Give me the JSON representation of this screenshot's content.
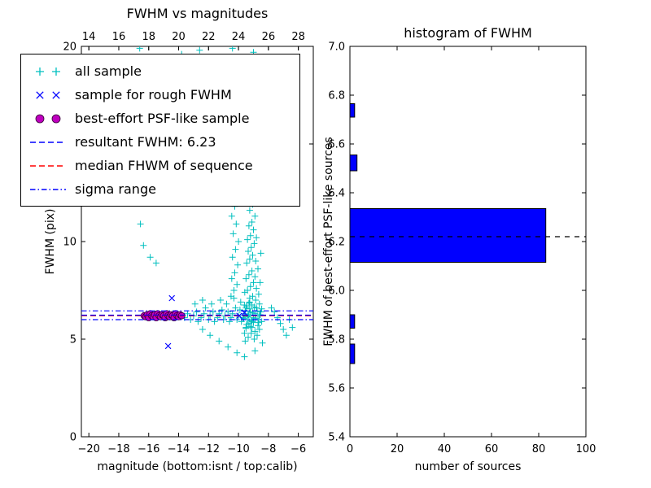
{
  "colors": {
    "cyan": "#00bfbf",
    "blue": "#0000ff",
    "magenta": "#bf00bf",
    "magenta_edge": "#330033",
    "red": "#ff0000",
    "black": "#000000",
    "hist_fill": "#0000ff",
    "background": "#ffffff"
  },
  "legend": {
    "items": [
      {
        "label": "all sample",
        "marker": "plus2",
        "color": "#00bfbf"
      },
      {
        "label": "sample for rough FWHM",
        "marker": "x2",
        "color": "#0000ff"
      },
      {
        "label": "best-effort PSF-like sample",
        "marker": "dot2",
        "color": "#bf00bf"
      },
      {
        "label": "resultant FWHM: 6.23",
        "marker": "dashed",
        "color": "#0000ff"
      },
      {
        "label": "median FHWM of sequence",
        "marker": "dashed",
        "color": "#ff0000"
      },
      {
        "label": "sigma range",
        "marker": "dashdot",
        "color": "#0000ff"
      }
    ]
  },
  "chart_data": [
    {
      "type": "scatter",
      "title": "FWHM vs magnitudes",
      "xlabel": "magnitude (bottom:isnt / top:calib)",
      "ylabel": "FWHM (pix)",
      "xlim": [
        -20.5,
        -5.0
      ],
      "xlim_top": [
        13.5,
        29.0
      ],
      "ylim": [
        0,
        20
      ],
      "xticks": [
        -20,
        -18,
        -16,
        -14,
        -12,
        -10,
        -8,
        -6
      ],
      "xticks_top": [
        14,
        16,
        18,
        20,
        22,
        24,
        26,
        28
      ],
      "yticks": [
        0,
        5,
        10,
        15,
        20
      ],
      "hlines": [
        {
          "name": "sigma range upper",
          "value": 6.45,
          "style": "dashdot",
          "color": "#0000ff"
        },
        {
          "name": "sigma range lower",
          "value": 6.0,
          "style": "dashdot",
          "color": "#0000ff"
        },
        {
          "name": "median FHWM of sequence",
          "value": 6.2,
          "style": "dashed",
          "color": "#ff0000"
        },
        {
          "name": "resultant FWHM",
          "value": 6.23,
          "style": "dashed",
          "color": "#0000ff"
        }
      ],
      "series": [
        {
          "name": "all sample",
          "marker": "plus",
          "color": "#00bfbf",
          "points": [
            [
              -13.6,
              6.1
            ],
            [
              -13.4,
              6.3
            ],
            [
              -13.2,
              6.0
            ],
            [
              -13.0,
              6.2
            ],
            [
              -12.8,
              6.4
            ],
            [
              -12.7,
              5.9
            ],
            [
              -12.5,
              6.1
            ],
            [
              -12.3,
              6.3
            ],
            [
              -12.2,
              6.6
            ],
            [
              -12.0,
              6.0
            ],
            [
              -11.9,
              6.2
            ],
            [
              -11.7,
              6.4
            ],
            [
              -11.6,
              5.9
            ],
            [
              -11.4,
              6.1
            ],
            [
              -11.3,
              6.3
            ],
            [
              -11.1,
              6.5
            ],
            [
              -11.0,
              6.0
            ],
            [
              -10.9,
              6.2
            ],
            [
              -10.7,
              6.4
            ],
            [
              -10.6,
              5.9
            ],
            [
              -10.5,
              6.1
            ],
            [
              -10.4,
              6.3
            ],
            [
              -10.2,
              6.6
            ],
            [
              -10.1,
              6.0
            ],
            [
              -10.0,
              6.2
            ],
            [
              -9.9,
              6.5
            ],
            [
              -9.8,
              5.9
            ],
            [
              -9.7,
              6.1
            ],
            [
              -9.6,
              6.3
            ],
            [
              -9.5,
              6.6
            ],
            [
              -9.4,
              6.0
            ],
            [
              -9.3,
              6.2
            ],
            [
              -9.2,
              6.4
            ],
            [
              -9.1,
              5.9
            ],
            [
              -9.0,
              6.1
            ],
            [
              -8.9,
              6.3
            ],
            [
              -8.8,
              6.6
            ],
            [
              -8.7,
              6.0
            ],
            [
              -8.6,
              6.2
            ],
            [
              -8.5,
              6.4
            ],
            [
              -12.9,
              6.8
            ],
            [
              -12.4,
              7.0
            ],
            [
              -11.8,
              6.8
            ],
            [
              -11.2,
              7.0
            ],
            [
              -10.8,
              6.8
            ],
            [
              -10.3,
              7.1
            ],
            [
              -9.85,
              6.9
            ],
            [
              -9.25,
              7.1
            ],
            [
              -9.65,
              6.05
            ],
            [
              -9.55,
              6.45
            ],
            [
              -9.45,
              5.75
            ],
            [
              -9.35,
              6.25
            ],
            [
              -9.25,
              6.55
            ],
            [
              -9.15,
              5.95
            ],
            [
              -9.05,
              6.35
            ],
            [
              -8.95,
              6.65
            ],
            [
              -8.85,
              6.05
            ],
            [
              -8.75,
              6.45
            ],
            [
              -8.65,
              5.85
            ],
            [
              -8.55,
              6.25
            ],
            [
              -8.45,
              6.55
            ],
            [
              -9.6,
              6.75
            ],
            [
              -9.5,
              5.55
            ],
            [
              -9.4,
              6.15
            ],
            [
              -9.3,
              6.85
            ],
            [
              -9.2,
              5.65
            ],
            [
              -9.1,
              6.75
            ],
            [
              -9.0,
              5.85
            ],
            [
              -9.55,
              4.9
            ],
            [
              -9.35,
              5.1
            ],
            [
              -9.15,
              5.3
            ],
            [
              -8.95,
              5.0
            ],
            [
              -8.75,
              5.2
            ],
            [
              -8.6,
              5.5
            ],
            [
              -9.5,
              5.6
            ],
            [
              -9.3,
              5.8
            ],
            [
              -9.1,
              5.6
            ],
            [
              -8.9,
              5.4
            ],
            [
              -8.7,
              5.7
            ],
            [
              -9.45,
              6.7
            ],
            [
              -9.25,
              6.9
            ],
            [
              -9.05,
              7.2
            ],
            [
              -8.85,
              7.0
            ],
            [
              -8.65,
              7.3
            ],
            [
              -9.4,
              7.5
            ],
            [
              -9.2,
              7.7
            ],
            [
              -9.0,
              7.9
            ],
            [
              -8.8,
              7.6
            ],
            [
              -9.5,
              8.1
            ],
            [
              -9.3,
              8.3
            ],
            [
              -9.1,
              8.5
            ],
            [
              -8.9,
              8.2
            ],
            [
              -8.7,
              8.6
            ],
            [
              -9.45,
              8.9
            ],
            [
              -9.25,
              9.1
            ],
            [
              -9.05,
              9.3
            ],
            [
              -8.85,
              9.0
            ],
            [
              -9.35,
              9.5
            ],
            [
              -9.15,
              9.7
            ],
            [
              -8.95,
              9.9
            ],
            [
              -9.4,
              10.1
            ],
            [
              -9.2,
              10.3
            ],
            [
              -9.0,
              10.6
            ],
            [
              -8.8,
              10.2
            ],
            [
              -9.3,
              10.8
            ],
            [
              -9.1,
              11.0
            ],
            [
              -8.9,
              11.3
            ],
            [
              -9.25,
              11.6
            ],
            [
              -9.05,
              11.9
            ],
            [
              -9.35,
              12.2
            ],
            [
              -9.15,
              12.5
            ],
            [
              -8.95,
              12.8
            ],
            [
              -9.2,
              13.1
            ],
            [
              -9.0,
              13.4
            ],
            [
              -8.6,
              6.8
            ],
            [
              -8.55,
              7.9
            ],
            [
              -8.5,
              9.4
            ],
            [
              -8.45,
              5.9
            ],
            [
              -9.6,
              5.3
            ],
            [
              -9.58,
              7.4
            ],
            [
              -10.5,
              7.2
            ],
            [
              -10.3,
              7.5
            ],
            [
              -10.1,
              7.8
            ],
            [
              -10.45,
              8.1
            ],
            [
              -10.25,
              8.4
            ],
            [
              -10.05,
              8.8
            ],
            [
              -10.4,
              9.2
            ],
            [
              -10.2,
              9.6
            ],
            [
              -10.0,
              10.0
            ],
            [
              -10.35,
              10.4
            ],
            [
              -10.15,
              10.9
            ],
            [
              -10.45,
              11.3
            ],
            [
              -10.25,
              11.8
            ],
            [
              -10.05,
              12.3
            ],
            [
              -10.3,
              12.7
            ],
            [
              -10.15,
              13.1
            ],
            [
              -12.6,
              19.8
            ],
            [
              -12.5,
              18.9
            ],
            [
              -12.4,
              16.5
            ],
            [
              -12.55,
              15.2
            ],
            [
              -10.4,
              19.9
            ],
            [
              -10.3,
              18.3
            ],
            [
              -10.5,
              17.0
            ],
            [
              -9.0,
              19.7
            ],
            [
              -8.9,
              18.6
            ],
            [
              -9.1,
              17.4
            ],
            [
              -9.3,
              15.8
            ],
            [
              -8.8,
              14.6
            ],
            [
              -9.5,
              14.1
            ],
            [
              -10.2,
              14.8
            ],
            [
              -13.8,
              19.6
            ],
            [
              -13.6,
              18.8
            ],
            [
              -16.6,
              19.9
            ],
            [
              -16.4,
              19.3
            ],
            [
              -16.5,
              13.4
            ],
            [
              -16.3,
              12.1
            ],
            [
              -16.55,
              10.9
            ],
            [
              -16.35,
              9.8
            ],
            [
              -15.9,
              9.2
            ],
            [
              -15.5,
              8.9
            ],
            [
              -7.8,
              6.6
            ],
            [
              -7.6,
              6.4
            ],
            [
              -7.4,
              6.1
            ],
            [
              -7.2,
              5.8
            ],
            [
              -7.0,
              5.5
            ],
            [
              -6.8,
              5.2
            ],
            [
              -6.6,
              6.0
            ],
            [
              -6.4,
              5.6
            ],
            [
              -12.4,
              5.5
            ],
            [
              -11.9,
              5.2
            ],
            [
              -11.3,
              4.9
            ],
            [
              -10.7,
              4.6
            ],
            [
              -10.1,
              4.3
            ],
            [
              -9.6,
              4.1
            ],
            [
              -8.9,
              4.4
            ],
            [
              -8.4,
              4.8
            ]
          ]
        },
        {
          "name": "sample for rough FWHM",
          "marker": "x",
          "color": "#0000ff",
          "points": [
            [
              -16.2,
              6.25
            ],
            [
              -15.8,
              6.15
            ],
            [
              -15.4,
              6.3
            ],
            [
              -15.0,
              6.2
            ],
            [
              -14.6,
              6.1
            ],
            [
              -14.2,
              6.3
            ],
            [
              -13.8,
              6.2
            ],
            [
              -14.45,
              7.1
            ],
            [
              -14.7,
              4.65
            ],
            [
              -9.95,
              6.2
            ],
            [
              -9.6,
              6.35
            ]
          ]
        },
        {
          "name": "best-effort PSF-like sample",
          "marker": "circle",
          "color": "#bf00bf",
          "points": [
            [
              -16.3,
              6.2
            ],
            [
              -16.2,
              6.15
            ],
            [
              -16.1,
              6.25
            ],
            [
              -16.0,
              6.1
            ],
            [
              -15.9,
              6.3
            ],
            [
              -15.8,
              6.2
            ],
            [
              -15.7,
              6.15
            ],
            [
              -15.6,
              6.25
            ],
            [
              -15.5,
              6.1
            ],
            [
              -15.4,
              6.3
            ],
            [
              -15.3,
              6.2
            ],
            [
              -15.2,
              6.15
            ],
            [
              -15.1,
              6.25
            ],
            [
              -15.0,
              6.2
            ],
            [
              -14.9,
              6.1
            ],
            [
              -14.8,
              6.3
            ],
            [
              -14.7,
              6.2
            ],
            [
              -14.6,
              6.15
            ],
            [
              -14.5,
              6.25
            ],
            [
              -14.4,
              6.2
            ],
            [
              -14.3,
              6.1
            ],
            [
              -14.2,
              6.3
            ],
            [
              -14.1,
              6.2
            ],
            [
              -14.0,
              6.15
            ],
            [
              -13.9,
              6.25
            ],
            [
              -13.8,
              6.2
            ]
          ]
        }
      ]
    },
    {
      "type": "bar",
      "orientation": "horizontal",
      "title": "histogram of FWHM",
      "xlabel": "number of sources",
      "ylabel": "FWHM of best-effort PSF-like sources",
      "xlim": [
        0,
        100
      ],
      "ylim": [
        5.4,
        7.0
      ],
      "xticks": [
        0,
        20,
        40,
        60,
        80,
        100
      ],
      "yticks": [
        5.4,
        5.6,
        5.8,
        6.0,
        6.2,
        6.4,
        6.6,
        6.8,
        7.0
      ],
      "bar_color": "#0000ff",
      "bars": [
        {
          "y0": 6.115,
          "y1": 6.335,
          "count": 83
        },
        {
          "y0": 6.49,
          "y1": 6.555,
          "count": 3
        },
        {
          "y0": 6.71,
          "y1": 6.765,
          "count": 2
        },
        {
          "y0": 5.845,
          "y1": 5.9,
          "count": 2
        },
        {
          "y0": 5.7,
          "y1": 5.78,
          "count": 2
        }
      ],
      "median_line": {
        "value": 6.22,
        "style": "dashed",
        "color": "#000000"
      }
    }
  ]
}
